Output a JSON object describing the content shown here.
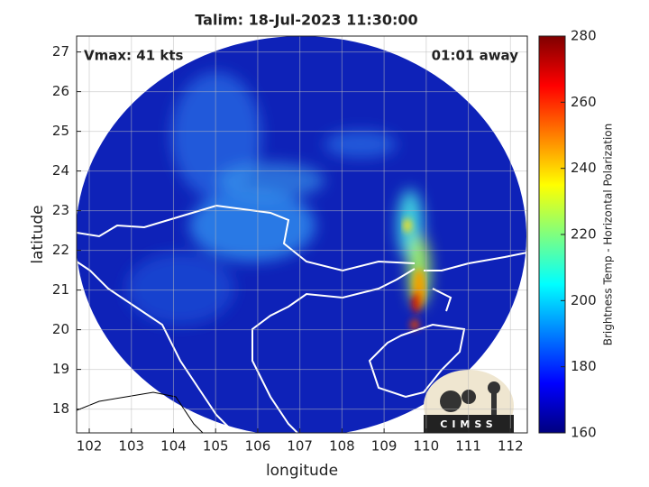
{
  "title": "Talim: 18-Jul-2023 11:30:00",
  "annotations": [
    "Vmax: 41 kts",
    "01:01 away"
  ],
  "map": {
    "xlabel": "longitude",
    "ylabel": "latitude",
    "xlim": [
      101.7,
      112.4
    ],
    "ylim": [
      17.4,
      27.4
    ],
    "xticks": [
      102,
      103,
      104,
      105,
      106,
      107,
      108,
      109,
      110,
      111,
      112
    ],
    "yticks": [
      18,
      19,
      20,
      21,
      22,
      23,
      24,
      25,
      26,
      27
    ],
    "grid": true
  },
  "colorbar": {
    "label": "Brightness Temp - Horizontal Polarization",
    "lim": [
      160,
      280
    ],
    "ticks": [
      160,
      180,
      200,
      220,
      240,
      260,
      280
    ],
    "colormap": "jet"
  },
  "logo": "CIMSS"
}
